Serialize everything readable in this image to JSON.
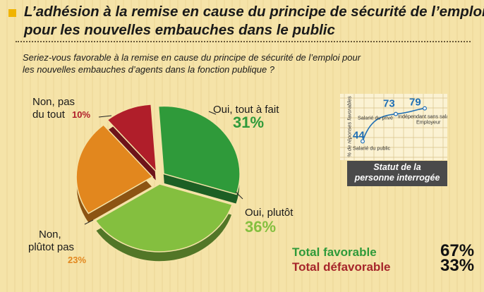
{
  "title_lines": [
    "L’adhésion à la remise en cause du principe de sécurité de l’emploi",
    "pour les nouvelles embauches dans le public"
  ],
  "question_lines": [
    "Seriez-vous favorable à la remise en cause du principe de sécurité de l’emploi pour",
    "les nouvelles embauches d’agents dans la fonction publique ?"
  ],
  "colors": {
    "oui_tout_a_fait": "#2f9a3a",
    "oui_plutot": "#84bf3f",
    "non_plutot_pas": "#e2871e",
    "non_pas_du_tout": "#b01e2a",
    "favorable": "#2f9a3a",
    "defavorable": "#a6262b",
    "inset_blue": "#1f6fb5"
  },
  "chart_data": [
    {
      "type": "pie",
      "slices": [
        {
          "key": "oui_tout_a_fait",
          "label_lines": [
            "Oui, tout à fait"
          ],
          "value": 31,
          "value_label": "31%"
        },
        {
          "key": "oui_plutot",
          "label_lines": [
            "Oui, plutôt"
          ],
          "value": 36,
          "value_label": "36%"
        },
        {
          "key": "non_plutot_pas",
          "label_lines": [
            "Non,",
            "plûtot pas"
          ],
          "value": 23,
          "value_label": "23%"
        },
        {
          "key": "non_pas_du_tout",
          "label_lines": [
            "Non, pas",
            "du tout"
          ],
          "value": 10,
          "value_label": "10%"
        }
      ]
    },
    {
      "type": "line",
      "ylabel": "% de réponses favorables",
      "xlabel_lines": [
        "Statut de la",
        "personne interrogée"
      ],
      "categories": [
        "Salarié du public",
        "Salarié du privé",
        "Indépendant sans salarié / Employeur"
      ],
      "values": [
        44,
        73,
        79
      ],
      "value_labels": [
        "44",
        "73",
        "79"
      ]
    }
  ],
  "totals": {
    "favorable_label": "Total favorable",
    "favorable_value": "67%",
    "defavorable_label": "Total défavorable",
    "defavorable_value": "33%"
  }
}
